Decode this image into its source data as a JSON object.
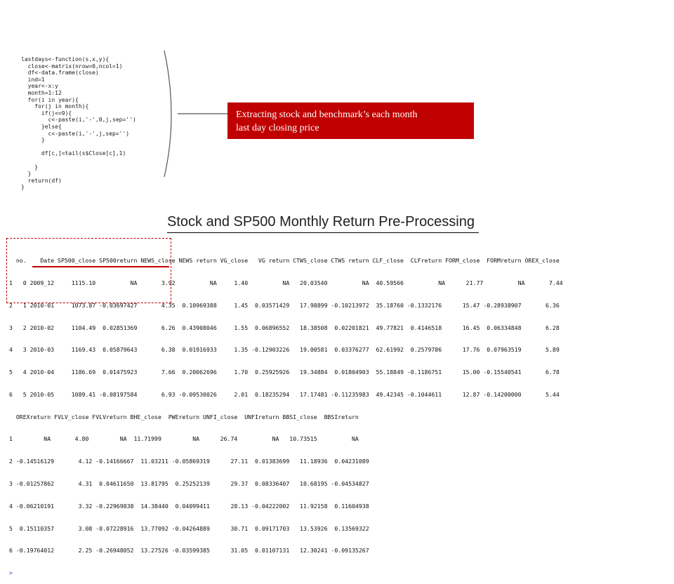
{
  "code": {
    "lines": [
      "lastdays<-function(s,x,y){",
      "  close<-matrix(nrow=0,ncol=1)",
      "  df<-data.frame(close)",
      "  ind=1",
      "  year<-x:y",
      "  month=1:12",
      "  for(i in year){",
      "    for(j in month){",
      "      if(j<=9){",
      "        c<-paste(i,'-',0,j,sep='')",
      "      }else{",
      "        c<-paste(i,'-',j,sep='')",
      "      }",
      "",
      "      df[c,]=tail(s$Close[c],1)",
      "",
      "    }",
      "  }",
      "  return(df)",
      "}"
    ]
  },
  "callout": {
    "line1": "Extracting stock and benchmark’s each month",
    "line2": "last day closing price",
    "color": "#c00000"
  },
  "title": "Stock and SP500 Monthly Return Pre-Processing",
  "console": {
    "block1": [
      "  no.    Date SP500_close SP500return NEWS_close NEWS return VG_close   VG return CTWS_close CTWS return CLF_close  CLFreturn FORM_close  FORMreturn OREX_close",
      "1   0 2009_12     1115.10          NA       3.92          NA     1.40          NA   20.03540          NA  40.59566          NA      21.77          NA       7.44",
      "2   1 2010-01     1073.87 -0.03697427       4.35  0.10969388     1.45  0.03571429   17.98899 -0.10213972  35.18760 -0.1332176      15.47 -0.28938907       6.36",
      "3   2 2010-02     1104.49  0.02851369       6.26  0.43908046     1.55  0.06896552   18.38508  0.02201821  49.77821  0.4146518      16.45  0.06334848       6.28",
      "4   3 2010-03     1169.43  0.05879643       6.38  0.01916933     1.35 -0.12903226   19.00581  0.03376277  62.61992  0.2579786      17.76  0.07963519       5.89",
      "5   4 2010-04     1186.69  0.01475923       7.66  0.20062696     1.70  0.25925926   19.34884  0.01804903  55.18849 -0.1186751      15.00 -0.15540541       6.78",
      "6   5 2010-05     1089.41 -0.08197584       6.93 -0.09530026     2.01  0.18235294   17.17481 -0.11235983  49.42345 -0.1044611      12.87 -0.14200000       5.44"
    ],
    "block2": [
      "  OREXreturn FVLV_close FVLVreturn BHE_close  PWEreturn UNFI_close  UNFIreturn BBSI_close  BBSIreturn",
      "1         NA       4.80         NA  11.71999         NA      26.74          NA   10.73515          NA",
      "2 -0.14516129       4.12 -0.14166667  11.03211 -0.05869319      27.11  0.01383699   11.18936  0.04231089",
      "3 -0.01257862       4.31  0.04611650  13.81795  0.25252139      29.37  0.08336407   10.68195 -0.04534827",
      "4 -0.06210191       3.32 -0.22969838  14.38440  0.04099411      28.13 -0.04222002   11.92158  0.11604938",
      "5  0.15110357       3.08 -0.07228916  13.77092 -0.04264889      30.71  0.09171703   13.53926  0.13569322",
      "6 -0.19764012       2.25 -0.26948052  13.27526 -0.03599385      31.05  0.01107131   12.30241 -0.09135267"
    ],
    "prompt": ">"
  }
}
